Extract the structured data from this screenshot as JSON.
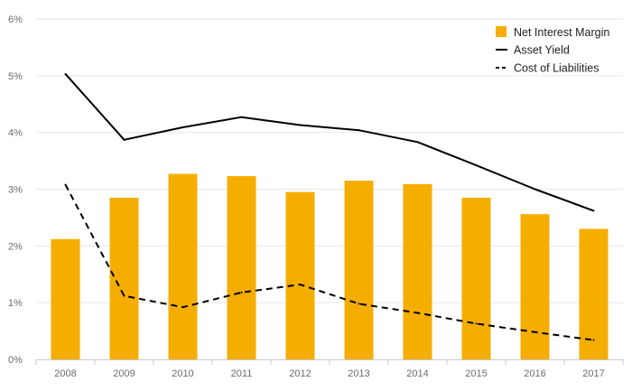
{
  "chart_data": {
    "type": "bar",
    "categories": [
      "2008",
      "2009",
      "2010",
      "2011",
      "2012",
      "2013",
      "2014",
      "2015",
      "2016",
      "2017"
    ],
    "series": [
      {
        "name": "Net Interest Margin",
        "kind": "bar",
        "color": "#F5AE00",
        "values": [
          2.12,
          2.85,
          3.27,
          3.23,
          2.95,
          3.15,
          3.09,
          2.85,
          2.56,
          2.3
        ]
      },
      {
        "name": "Asset Yield",
        "kind": "line",
        "style": "solid",
        "color": "#000000",
        "values": [
          5.03,
          3.87,
          4.09,
          4.27,
          4.13,
          4.04,
          3.83,
          3.42,
          3.0,
          2.62
        ]
      },
      {
        "name": "Cost of Liabilities",
        "kind": "line",
        "style": "dashed",
        "color": "#000000",
        "values": [
          3.08,
          1.12,
          0.92,
          1.18,
          1.32,
          0.98,
          0.82,
          0.63,
          0.48,
          0.34
        ]
      }
    ],
    "yticks": [
      "0%",
      "1%",
      "2%",
      "3%",
      "4%",
      "5%",
      "6%"
    ],
    "ylim": [
      0,
      6
    ],
    "title": "",
    "xlabel": "",
    "ylabel": "",
    "grid": true,
    "legend_position": "top-right"
  }
}
